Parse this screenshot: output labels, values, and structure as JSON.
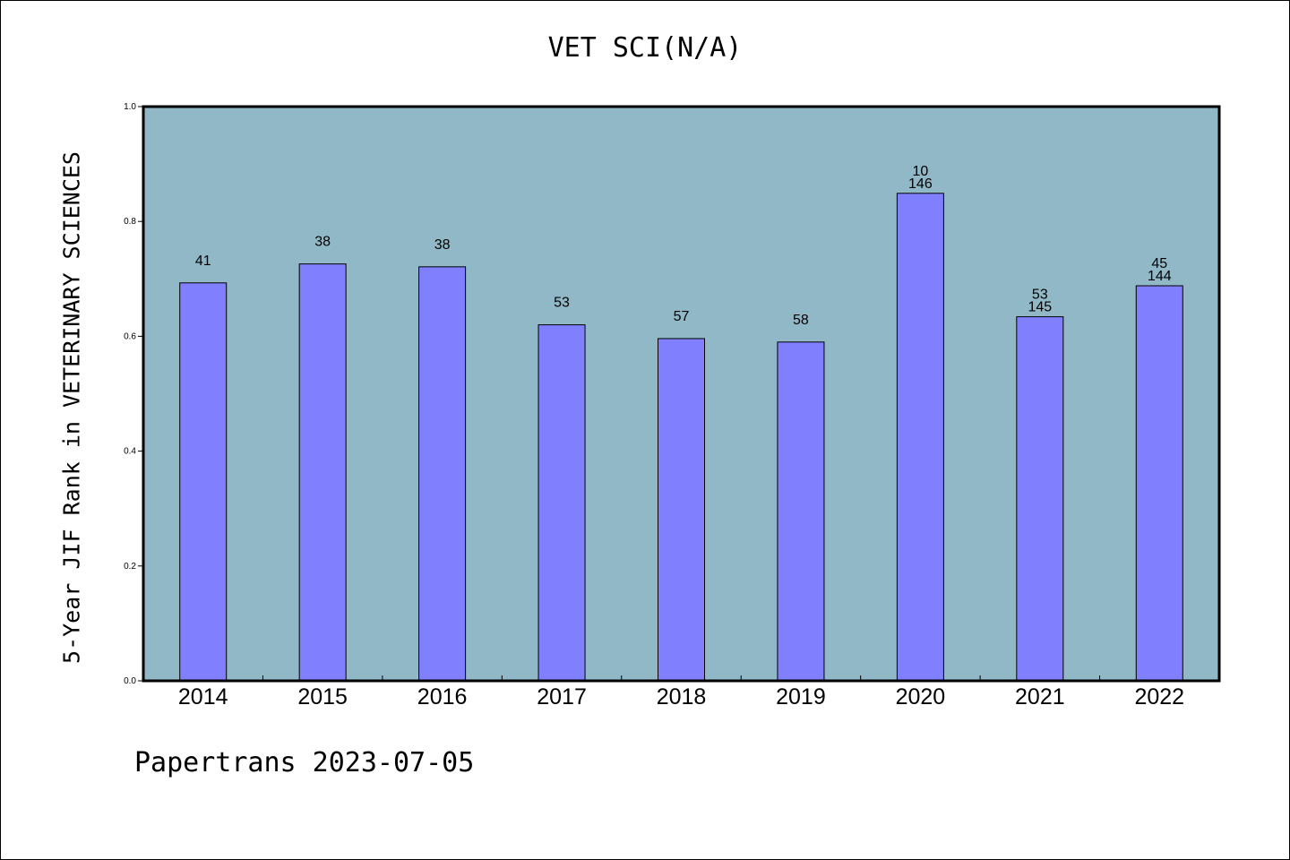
{
  "chart_data": {
    "type": "bar",
    "title": "VET SCI(N/A)",
    "xlabel": "",
    "ylabel": "5-Year JIF Rank in VETERINARY SCIENCES",
    "ylim": [
      0,
      1.0
    ],
    "yticks": [
      "0.0",
      "0.2",
      "0.4",
      "0.6",
      "0.8",
      "1.0"
    ],
    "categories": [
      "2014",
      "2015",
      "2016",
      "2017",
      "2018",
      "2019",
      "2020",
      "2021",
      "2022"
    ],
    "values": [
      0.693,
      0.726,
      0.721,
      0.62,
      0.596,
      0.59,
      0.849,
      0.634,
      0.688
    ],
    "labels": [
      [
        "41"
      ],
      [
        "38"
      ],
      [
        "38"
      ],
      [
        "53"
      ],
      [
        "57"
      ],
      [
        "58"
      ],
      [
        "10",
        "146"
      ],
      [
        "53",
        "145"
      ],
      [
        "45",
        "144"
      ]
    ],
    "colors": {
      "plot_bg": "#91b8c7",
      "bar": "#8080ff",
      "bar_edge": "#000000"
    },
    "grid": false,
    "footer": "Papertrans 2023-07-05"
  }
}
